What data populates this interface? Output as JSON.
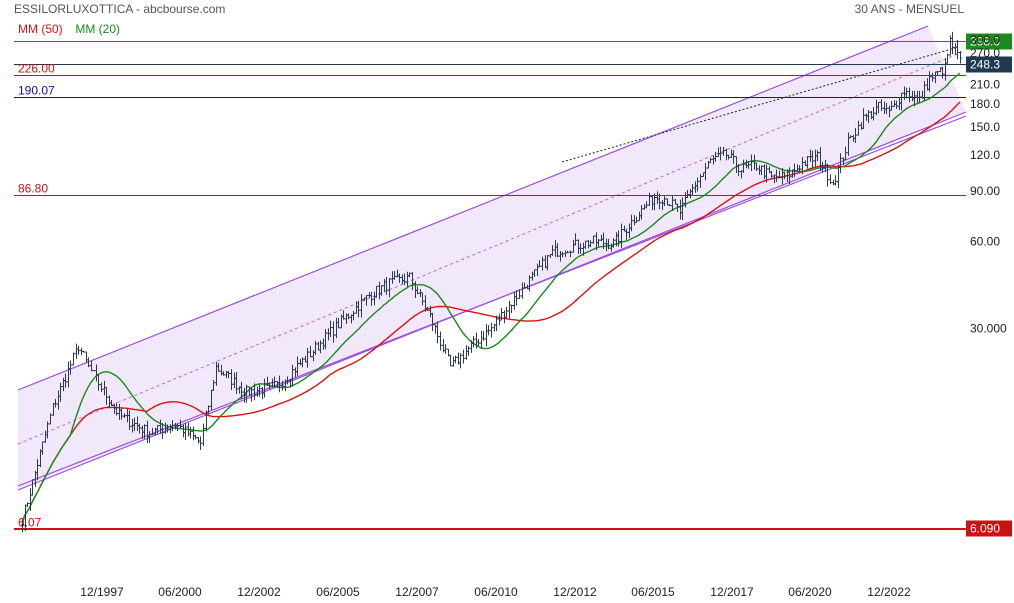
{
  "header": {
    "title": "ESSILORLUXOTTICA - abcbourse.com",
    "period": "30 ANS - MENSUEL"
  },
  "legend": {
    "ma50": "MM (50)",
    "ma20": "MM (20)",
    "ma50_color": "#dd1111",
    "ma20_color": "#1a8a1a"
  },
  "chart_data": {
    "type": "line",
    "scale": "log",
    "ylim": [
      5.5,
      330
    ],
    "x_ticks": [
      "12/1997",
      "06/2000",
      "12/2002",
      "06/2005",
      "12/2007",
      "06/2010",
      "12/2012",
      "06/2015",
      "12/2017",
      "06/2020",
      "12/2022"
    ],
    "y_ticks": [
      "300.0",
      "270.0",
      "210.0",
      "180.0",
      "150.0",
      "120.0",
      "90.00",
      "60.00",
      "30.000"
    ],
    "levels": [
      {
        "value": 298.0,
        "label": "298.0",
        "color": "#1a8a1a",
        "side": "right"
      },
      {
        "value": 248.3,
        "label": "248.3",
        "color": "#1f3a4f",
        "side": "right"
      },
      {
        "value": 226.0,
        "label": "226.00",
        "color": "#cc1111",
        "side": "left"
      },
      {
        "value": 190.07,
        "label": "190.07",
        "color": "#1111aa",
        "side": "left"
      },
      {
        "value": 86.8,
        "label": "86.80",
        "color": "#cc1111",
        "side": "left"
      },
      {
        "value": 6.09,
        "label": "6.090",
        "color": "#cc1111",
        "side": "right"
      },
      {
        "value": 6.07,
        "label": "6.07",
        "color": "#cc1111",
        "side": "left"
      }
    ],
    "series": [
      {
        "name": "MM (50)",
        "color": "#dd1111"
      },
      {
        "name": "MM (20)",
        "color": "#1a8a1a"
      }
    ],
    "price_path": [
      [
        0,
        6.5
      ],
      [
        12,
        16
      ],
      [
        22,
        26
      ],
      [
        26,
        22
      ],
      [
        38,
        15
      ],
      [
        50,
        13
      ],
      [
        60,
        14
      ],
      [
        70,
        12
      ],
      [
        76,
        22
      ],
      [
        88,
        18
      ],
      [
        100,
        19
      ],
      [
        112,
        24
      ],
      [
        124,
        31
      ],
      [
        136,
        39
      ],
      [
        144,
        43
      ],
      [
        152,
        45
      ],
      [
        160,
        33
      ],
      [
        168,
        22
      ],
      [
        176,
        26
      ],
      [
        184,
        30
      ],
      [
        192,
        37
      ],
      [
        200,
        45
      ],
      [
        208,
        55
      ],
      [
        216,
        58
      ],
      [
        224,
        60
      ],
      [
        232,
        59
      ],
      [
        240,
        72
      ],
      [
        248,
        86
      ],
      [
        252,
        85
      ],
      [
        258,
        76
      ],
      [
        264,
        95
      ],
      [
        270,
        114
      ],
      [
        276,
        120
      ],
      [
        282,
        107
      ],
      [
        288,
        110
      ],
      [
        294,
        100
      ],
      [
        300,
        101
      ],
      [
        306,
        112
      ],
      [
        312,
        118
      ],
      [
        318,
        96
      ],
      [
        324,
        132
      ],
      [
        330,
        160
      ],
      [
        336,
        175
      ],
      [
        340,
        168
      ],
      [
        346,
        200
      ],
      [
        352,
        185
      ],
      [
        356,
        220
      ],
      [
        362,
        240
      ],
      [
        364,
        295
      ],
      [
        368,
        255
      ]
    ]
  }
}
